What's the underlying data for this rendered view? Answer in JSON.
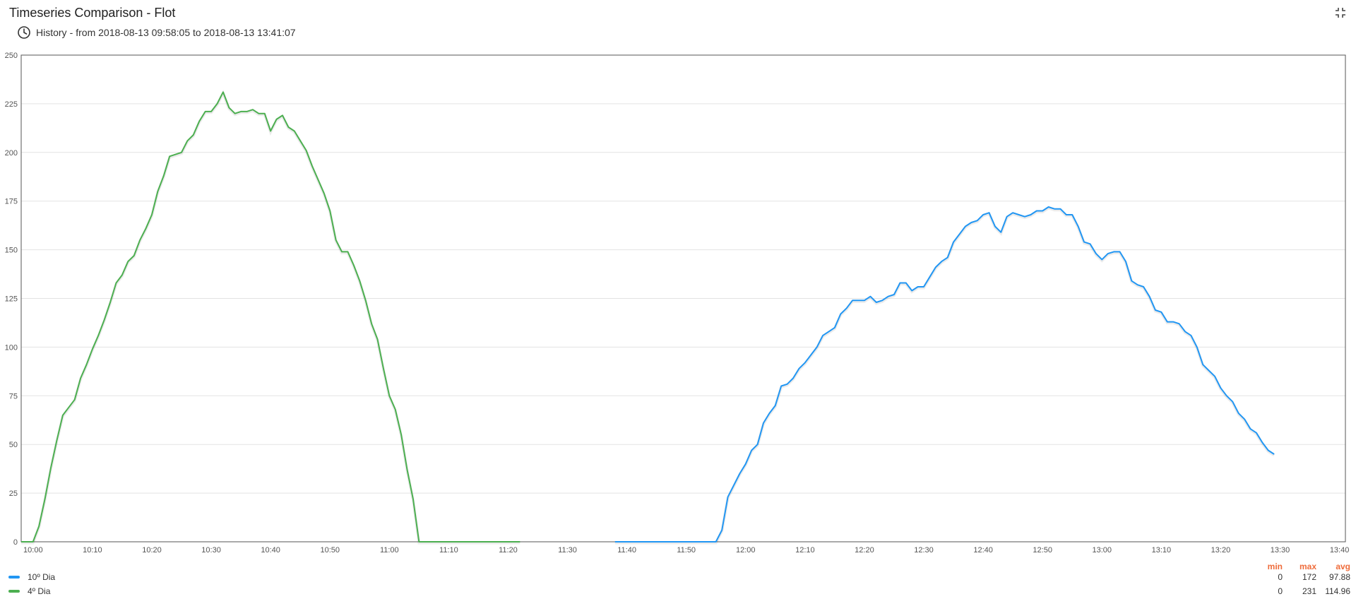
{
  "widget": {
    "title": "Timeseries Comparison - Flot",
    "history_prefix": "History",
    "history_range": "from 2018-08-13 09:58:05 to 2018-08-13 13:41:07",
    "fullscreen_icon": "fullscreen-exit-icon",
    "clock_icon": "clock-icon"
  },
  "legend": {
    "headers": {
      "min": "min",
      "max": "max",
      "avg": "avg"
    },
    "rows": [
      {
        "name": "10º Dia",
        "color": "#2196f3",
        "min": "0",
        "max": "172",
        "avg": "97.88"
      },
      {
        "name": "4º Dia",
        "color": "#4caf50",
        "min": "0",
        "max": "231",
        "avg": "114.96"
      }
    ]
  },
  "chart_data": {
    "type": "line",
    "title": "",
    "xlabel": "",
    "ylabel": "",
    "x_range": [
      "09:58",
      "13:41"
    ],
    "ylim": [
      0,
      250
    ],
    "y_ticks": [
      "0",
      "25",
      "50",
      "75",
      "100",
      "125",
      "150",
      "175",
      "200",
      "225",
      "250"
    ],
    "x_ticks": [
      "10:00",
      "10:10",
      "10:20",
      "10:30",
      "10:40",
      "10:50",
      "11:00",
      "11:10",
      "11:20",
      "11:30",
      "11:40",
      "11:50",
      "12:00",
      "12:10",
      "12:20",
      "12:30",
      "12:40",
      "12:50",
      "13:00",
      "13:10",
      "13:20",
      "13:30",
      "13:40"
    ],
    "grid": true,
    "legend_position": "bottom",
    "series": [
      {
        "name": "4º Dia",
        "color": "#4caf50",
        "points": [
          [
            "09:58",
            0
          ],
          [
            "10:00",
            0
          ],
          [
            "10:01",
            8
          ],
          [
            "10:02",
            22
          ],
          [
            "10:03",
            38
          ],
          [
            "10:04",
            52
          ],
          [
            "10:05",
            65
          ],
          [
            "10:06",
            69
          ],
          [
            "10:07",
            73
          ],
          [
            "10:08",
            84
          ],
          [
            "10:09",
            91
          ],
          [
            "10:10",
            99
          ],
          [
            "10:11",
            106
          ],
          [
            "10:12",
            114
          ],
          [
            "10:13",
            123
          ],
          [
            "10:14",
            133
          ],
          [
            "10:15",
            137
          ],
          [
            "10:16",
            144
          ],
          [
            "10:17",
            147
          ],
          [
            "10:18",
            155
          ],
          [
            "10:19",
            161
          ],
          [
            "10:20",
            168
          ],
          [
            "10:21",
            180
          ],
          [
            "10:22",
            188
          ],
          [
            "10:23",
            198
          ],
          [
            "10:24",
            199
          ],
          [
            "10:25",
            200
          ],
          [
            "10:26",
            206
          ],
          [
            "10:27",
            209
          ],
          [
            "10:28",
            216
          ],
          [
            "10:29",
            221
          ],
          [
            "10:30",
            221
          ],
          [
            "10:31",
            225
          ],
          [
            "10:32",
            231
          ],
          [
            "10:33",
            223
          ],
          [
            "10:34",
            220
          ],
          [
            "10:35",
            221
          ],
          [
            "10:36",
            221
          ],
          [
            "10:37",
            222
          ],
          [
            "10:38",
            220
          ],
          [
            "10:39",
            220
          ],
          [
            "10:40",
            211
          ],
          [
            "10:41",
            217
          ],
          [
            "10:42",
            219
          ],
          [
            "10:43",
            213
          ],
          [
            "10:44",
            211
          ],
          [
            "10:45",
            206
          ],
          [
            "10:46",
            201
          ],
          [
            "10:47",
            193
          ],
          [
            "10:48",
            186
          ],
          [
            "10:49",
            179
          ],
          [
            "10:50",
            170
          ],
          [
            "10:51",
            155
          ],
          [
            "10:52",
            149
          ],
          [
            "10:53",
            149
          ],
          [
            "10:54",
            142
          ],
          [
            "10:55",
            134
          ],
          [
            "10:56",
            124
          ],
          [
            "10:57",
            112
          ],
          [
            "10:58",
            104
          ],
          [
            "10:59",
            89
          ],
          [
            "11:00",
            75
          ],
          [
            "11:01",
            68
          ],
          [
            "11:02",
            55
          ],
          [
            "11:03",
            37
          ],
          [
            "11:04",
            22
          ],
          [
            "11:05",
            0
          ],
          [
            "11:22",
            0
          ]
        ]
      },
      {
        "name": "10º Dia",
        "color": "#2196f3",
        "points": [
          [
            "11:38",
            0
          ],
          [
            "11:55",
            0
          ],
          [
            "11:56",
            6
          ],
          [
            "11:57",
            23
          ],
          [
            "11:58",
            29
          ],
          [
            "11:59",
            35
          ],
          [
            "12:00",
            40
          ],
          [
            "12:01",
            47
          ],
          [
            "12:02",
            50
          ],
          [
            "12:03",
            61
          ],
          [
            "12:04",
            66
          ],
          [
            "12:05",
            70
          ],
          [
            "12:06",
            80
          ],
          [
            "12:07",
            81
          ],
          [
            "12:08",
            84
          ],
          [
            "12:09",
            89
          ],
          [
            "12:10",
            92
          ],
          [
            "12:11",
            96
          ],
          [
            "12:12",
            100
          ],
          [
            "12:13",
            106
          ],
          [
            "12:14",
            108
          ],
          [
            "12:15",
            110
          ],
          [
            "12:16",
            117
          ],
          [
            "12:17",
            120
          ],
          [
            "12:18",
            124
          ],
          [
            "12:19",
            124
          ],
          [
            "12:20",
            124
          ],
          [
            "12:21",
            126
          ],
          [
            "12:22",
            123
          ],
          [
            "12:23",
            124
          ],
          [
            "12:24",
            126
          ],
          [
            "12:25",
            127
          ],
          [
            "12:26",
            133
          ],
          [
            "12:27",
            133
          ],
          [
            "12:28",
            129
          ],
          [
            "12:29",
            131
          ],
          [
            "12:30",
            131
          ],
          [
            "12:31",
            136
          ],
          [
            "12:32",
            141
          ],
          [
            "12:33",
            144
          ],
          [
            "12:34",
            146
          ],
          [
            "12:35",
            154
          ],
          [
            "12:36",
            158
          ],
          [
            "12:37",
            162
          ],
          [
            "12:38",
            164
          ],
          [
            "12:39",
            165
          ],
          [
            "12:40",
            168
          ],
          [
            "12:41",
            169
          ],
          [
            "12:42",
            162
          ],
          [
            "12:43",
            159
          ],
          [
            "12:44",
            167
          ],
          [
            "12:45",
            169
          ],
          [
            "12:46",
            168
          ],
          [
            "12:47",
            167
          ],
          [
            "12:48",
            168
          ],
          [
            "12:49",
            170
          ],
          [
            "12:50",
            170
          ],
          [
            "12:51",
            172
          ],
          [
            "12:52",
            171
          ],
          [
            "12:53",
            171
          ],
          [
            "12:54",
            168
          ],
          [
            "12:55",
            168
          ],
          [
            "12:56",
            162
          ],
          [
            "12:57",
            154
          ],
          [
            "12:58",
            153
          ],
          [
            "12:59",
            148
          ],
          [
            "13:00",
            145
          ],
          [
            "13:01",
            148
          ],
          [
            "13:02",
            149
          ],
          [
            "13:03",
            149
          ],
          [
            "13:04",
            144
          ],
          [
            "13:05",
            134
          ],
          [
            "13:06",
            132
          ],
          [
            "13:07",
            131
          ],
          [
            "13:08",
            126
          ],
          [
            "13:09",
            119
          ],
          [
            "13:10",
            118
          ],
          [
            "13:11",
            113
          ],
          [
            "13:12",
            113
          ],
          [
            "13:13",
            112
          ],
          [
            "13:14",
            108
          ],
          [
            "13:15",
            106
          ],
          [
            "13:16",
            100
          ],
          [
            "13:17",
            91
          ],
          [
            "13:18",
            88
          ],
          [
            "13:19",
            85
          ],
          [
            "13:20",
            79
          ],
          [
            "13:21",
            75
          ],
          [
            "13:22",
            72
          ],
          [
            "13:23",
            66
          ],
          [
            "13:24",
            63
          ],
          [
            "13:25",
            58
          ],
          [
            "13:26",
            56
          ],
          [
            "13:27",
            51
          ],
          [
            "13:28",
            47
          ],
          [
            "13:29",
            45
          ]
        ]
      }
    ]
  }
}
